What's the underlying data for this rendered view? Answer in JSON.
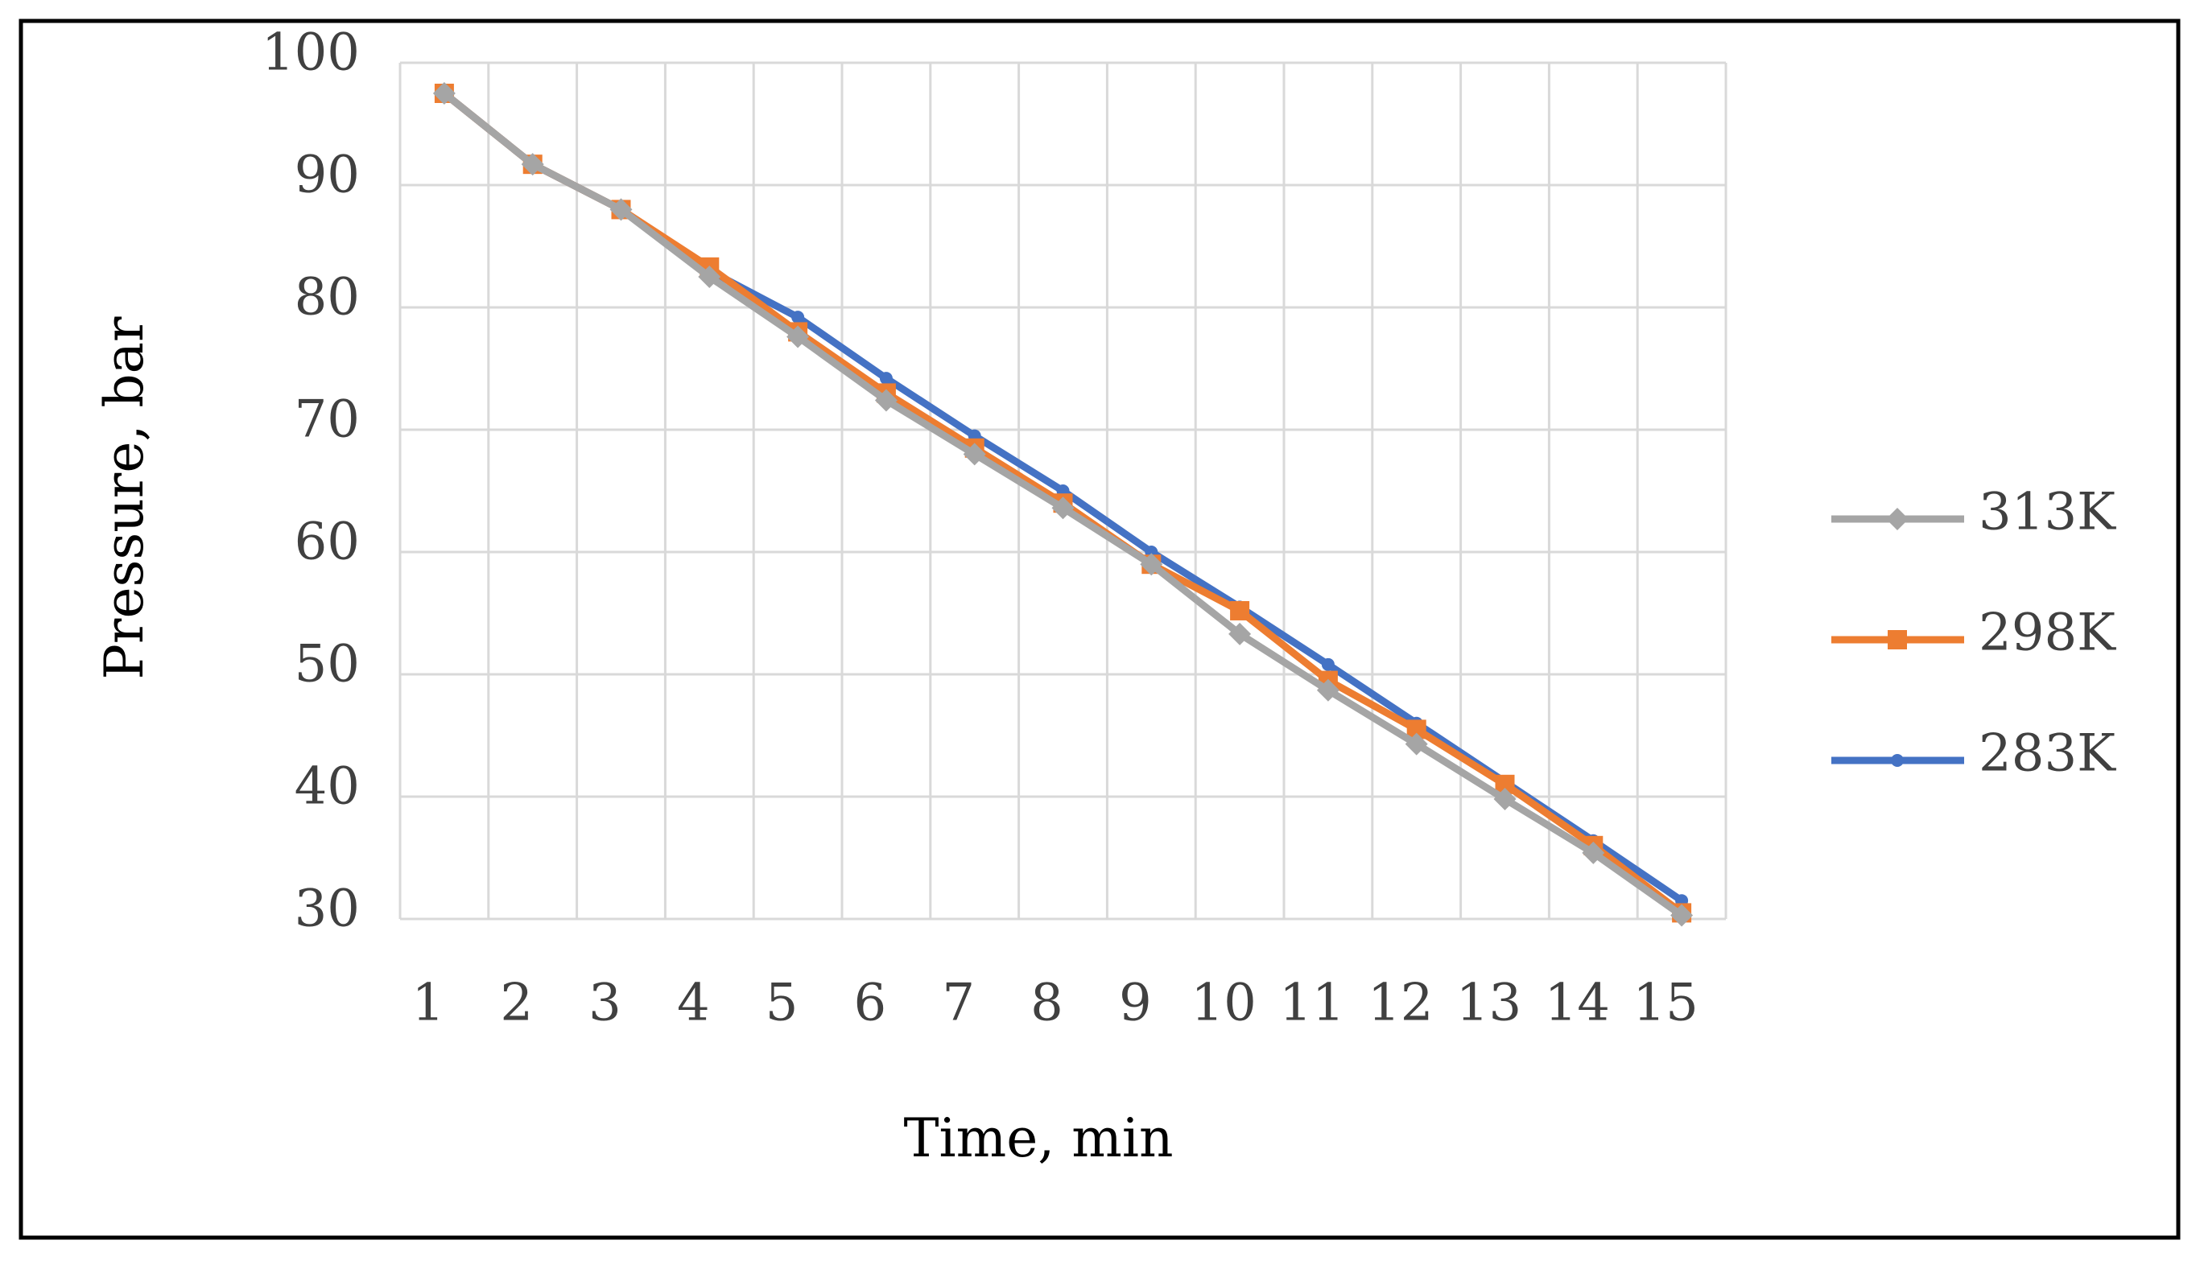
{
  "chart_data": {
    "type": "line",
    "x_label": "Time, min",
    "y_label": "Pressure, bar",
    "categories": [
      "1",
      "2",
      "3",
      "4",
      "5",
      "6",
      "7",
      "8",
      "9",
      "10",
      "11",
      "12",
      "13",
      "14",
      "15"
    ],
    "series": [
      {
        "name": "313K",
        "color": "#a5a5a5",
        "marker": "diamond",
        "values": [
          97.5,
          91.7,
          88,
          82.5,
          77.6,
          72.4,
          68,
          63.6,
          59,
          53.3,
          48.7,
          44.3,
          39.8,
          35.4,
          30.3
        ]
      },
      {
        "name": "298K",
        "color": "#ed7d31",
        "marker": "square",
        "values": [
          97.5,
          91.7,
          88,
          83.3,
          78,
          73,
          68.5,
          64,
          59,
          55.2,
          49.5,
          45.5,
          41,
          36,
          30.5
        ]
      },
      {
        "name": "283K",
        "color": "#4472c4",
        "marker": "dot",
        "values": [
          97.5,
          91.7,
          88,
          83,
          79.2,
          74.2,
          69.5,
          65,
          60,
          55.5,
          50.8,
          46,
          41.2,
          36.4,
          31.5
        ]
      }
    ],
    "ylim": [
      30,
      100
    ],
    "yticks": [
      30,
      40,
      50,
      60,
      70,
      80,
      90,
      100
    ],
    "grid": true,
    "legend": "right"
  }
}
